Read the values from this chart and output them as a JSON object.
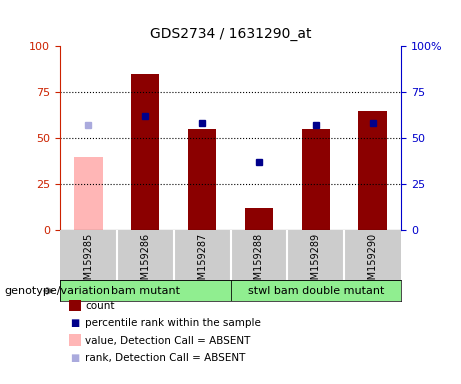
{
  "title": "GDS2734 / 1631290_at",
  "samples": [
    "GSM159285",
    "GSM159286",
    "GSM159287",
    "GSM159288",
    "GSM159289",
    "GSM159290"
  ],
  "bar_values": [
    40,
    85,
    55,
    12,
    55,
    65
  ],
  "bar_colors": [
    "#ffb6b6",
    "#8b0000",
    "#8b0000",
    "#8b0000",
    "#8b0000",
    "#8b0000"
  ],
  "rank_values": [
    57,
    62,
    58,
    37,
    57,
    58
  ],
  "rank_colors": [
    "#aaaadd",
    "#00008b",
    "#00008b",
    "#00008b",
    "#00008b",
    "#00008b"
  ],
  "absent_mask": [
    true,
    false,
    false,
    false,
    false,
    false
  ],
  "ylim": [
    0,
    100
  ],
  "yticks": [
    0,
    25,
    50,
    75,
    100
  ],
  "groups": [
    {
      "label": "bam mutant",
      "start": 0,
      "end": 2,
      "color": "#90ee90"
    },
    {
      "label": "stwl bam double mutant",
      "start": 3,
      "end": 5,
      "color": "#90ee90"
    }
  ],
  "group_label": "genotype/variation",
  "left_axis_color": "#cc2200",
  "right_axis_color": "#0000cc",
  "bg_color": "#ffffff",
  "sample_bg_color": "#cccccc",
  "legend_items": [
    {
      "label": "count",
      "color": "#8b0000",
      "type": "bar"
    },
    {
      "label": "percentile rank within the sample",
      "color": "#00008b",
      "type": "square"
    },
    {
      "label": "value, Detection Call = ABSENT",
      "color": "#ffb6b6",
      "type": "bar"
    },
    {
      "label": "rank, Detection Call = ABSENT",
      "color": "#aaaadd",
      "type": "square"
    }
  ]
}
